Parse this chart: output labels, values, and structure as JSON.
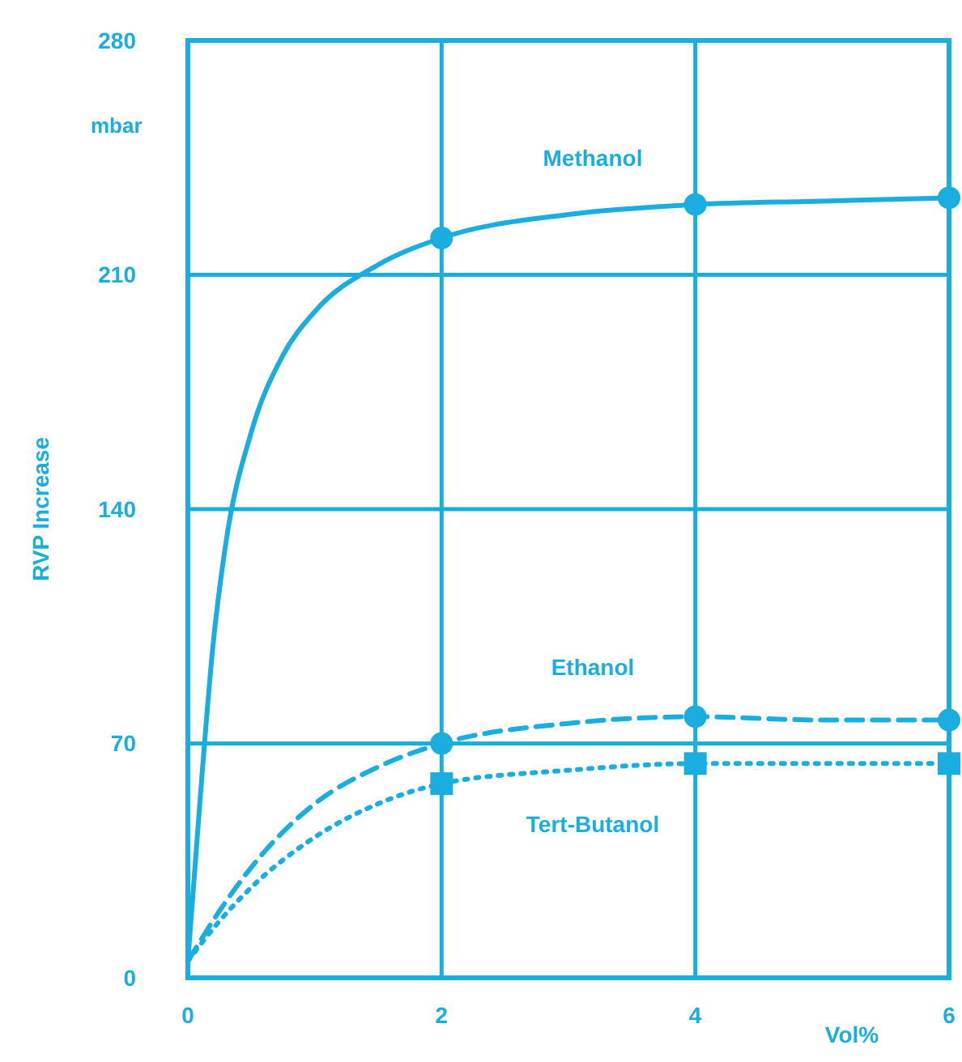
{
  "chart_data": {
    "type": "line",
    "ylabel": "RVP Increase",
    "xlabel": "Vol%",
    "annotations": [
      "mbar"
    ],
    "xlim": [
      0,
      6
    ],
    "ylim": [
      0,
      280
    ],
    "xticks": [
      0,
      2,
      4,
      6
    ],
    "yticks": [
      0,
      70,
      140,
      210,
      280
    ],
    "grid": true,
    "series": [
      {
        "name": "Methanol",
        "color": "#1aaee0",
        "line_style": "solid",
        "marker": "none",
        "x": [
          0,
          0.05,
          0.1,
          0.2,
          0.3,
          0.5,
          0.75,
          1,
          1.5,
          2,
          3,
          4,
          5,
          6
        ],
        "values": [
          5,
          30,
          55,
          100,
          130,
          163,
          186,
          199,
          213,
          221,
          228,
          231,
          232,
          233
        ]
      },
      {
        "name": "Ethanol",
        "color": "#1aaee0",
        "line_style": "dashed",
        "marker": "none",
        "x": [
          0,
          0.25,
          0.5,
          1,
          1.5,
          2,
          3,
          4,
          5,
          6
        ],
        "values": [
          5,
          20,
          33,
          52,
          63,
          70,
          76,
          78,
          77,
          77
        ]
      },
      {
        "name": "Tert-Butanol",
        "color": "#1aaee0",
        "line_style": "dotted",
        "marker": "none",
        "x": [
          0,
          0.25,
          0.5,
          1,
          1.5,
          2,
          3,
          4,
          5,
          6
        ],
        "values": [
          5,
          17,
          27,
          42,
          52,
          58,
          62,
          64,
          64,
          64
        ]
      },
      {
        "type": "scatter",
        "color": "#1aaee0",
        "marker": "circle",
        "x": [
          2,
          4,
          6
        ],
        "values": [
          221,
          231,
          233
        ]
      },
      {
        "type": "scatter",
        "color": "#1aaee0",
        "marker": "circle",
        "x": [
          2,
          4,
          6
        ],
        "values": [
          70,
          78,
          77
        ]
      },
      {
        "type": "scatter",
        "color": "#1aaee0",
        "marker": "square",
        "x": [
          2,
          4,
          6
        ],
        "values": [
          58,
          64,
          64
        ]
      }
    ]
  }
}
